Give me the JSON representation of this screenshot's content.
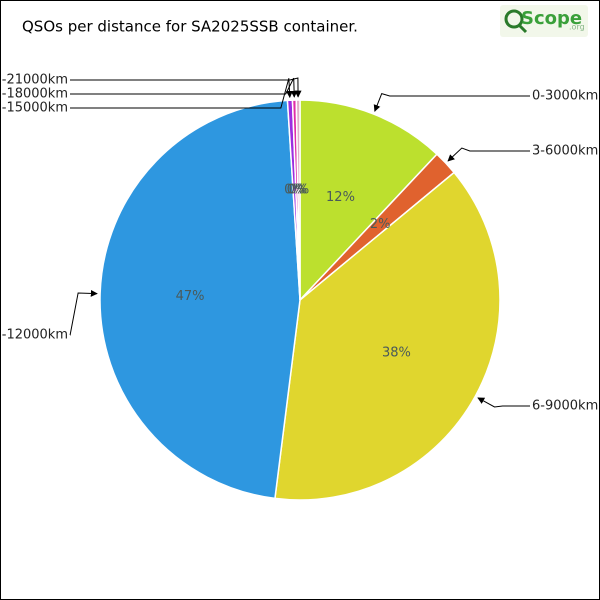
{
  "chart_data": {
    "type": "pie",
    "title": "QSOs per distance for SA2025SSB container.",
    "logo": {
      "text": "Scope",
      "suffix": ".org"
    },
    "categories": [
      "0-3000km",
      "3-6000km",
      "6-9000km",
      "-12000km",
      "-15000km",
      "-18000km",
      "-21000km"
    ],
    "values": [
      12,
      2,
      38,
      47,
      0.4,
      0.3,
      0.3
    ],
    "value_labels": [
      "12%",
      "2%",
      "38%",
      "47%",
      "0%",
      "0%",
      "0%"
    ],
    "colors": [
      "#bce02e",
      "#e0622e",
      "#e0d62e",
      "#2e97e0",
      "#9b2ee0",
      "#e02ea8",
      "#e0b0c8"
    ]
  }
}
